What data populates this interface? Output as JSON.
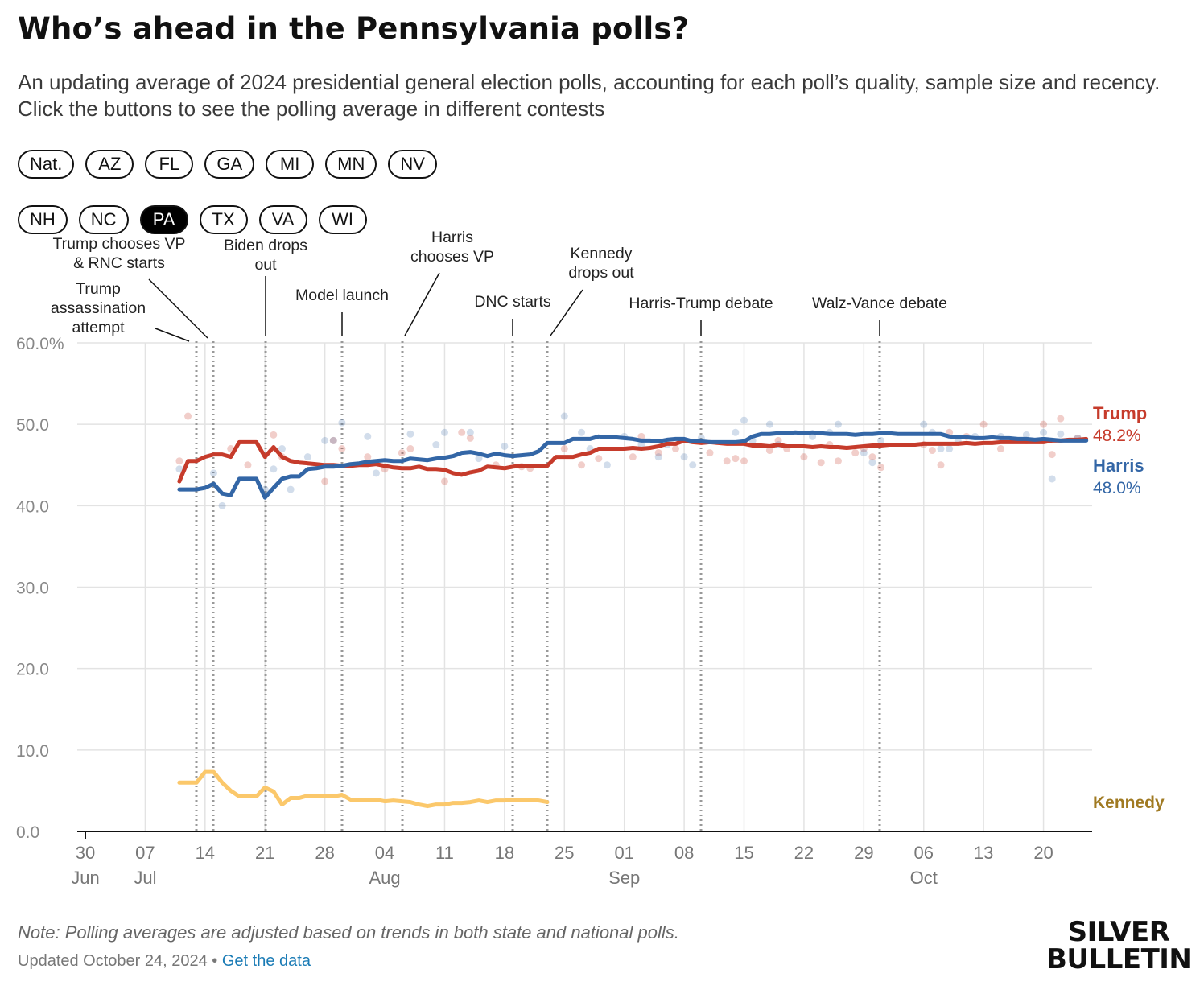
{
  "header": {
    "title": "Who’s ahead in the Pennsylvania polls?",
    "subtitle": "An updating average of 2024 presidential general election polls, accounting for each poll’s quality, sample size and recency. Click the buttons to see the polling average in different contests"
  },
  "buttons": {
    "row1": [
      "Nat.",
      "AZ",
      "FL",
      "GA",
      "MI",
      "MN",
      "NV"
    ],
    "row2": [
      "NH",
      "NC",
      "PA",
      "TX",
      "VA",
      "WI"
    ],
    "active": "PA"
  },
  "colors": {
    "trump": "#c63b2b",
    "harris": "#3366a6",
    "kennedy": "#fbc86b",
    "kennedy_label": "#a07a22",
    "grid": "#e3e3e3",
    "axis": "#111111",
    "tick": "#888888"
  },
  "chart_data": {
    "type": "line",
    "title": "Who’s ahead in the Pennsylvania polls?",
    "ylabel": "",
    "xlabel": "",
    "ylim": [
      0,
      60
    ],
    "y_ticks": [
      "60.0%",
      "50.0",
      "40.0",
      "30.0",
      "20.0",
      "10.0",
      "0.0"
    ],
    "y_tick_values": [
      60,
      50,
      40,
      30,
      20,
      10,
      0
    ],
    "x_domain_days": [
      0,
      117
    ],
    "x_ticks": [
      {
        "day": 0,
        "label": "30",
        "month": "Jun"
      },
      {
        "day": 7,
        "label": "07",
        "month": "Jul"
      },
      {
        "day": 14,
        "label": "14",
        "month": ""
      },
      {
        "day": 21,
        "label": "21",
        "month": ""
      },
      {
        "day": 28,
        "label": "28",
        "month": ""
      },
      {
        "day": 35,
        "label": "04",
        "month": "Aug"
      },
      {
        "day": 42,
        "label": "11",
        "month": ""
      },
      {
        "day": 49,
        "label": "18",
        "month": ""
      },
      {
        "day": 56,
        "label": "25",
        "month": ""
      },
      {
        "day": 63,
        "label": "01",
        "month": "Sep"
      },
      {
        "day": 70,
        "label": "08",
        "month": ""
      },
      {
        "day": 77,
        "label": "15",
        "month": ""
      },
      {
        "day": 84,
        "label": "22",
        "month": ""
      },
      {
        "day": 91,
        "label": "29",
        "month": ""
      },
      {
        "day": 98,
        "label": "06",
        "month": "Oct"
      },
      {
        "day": 105,
        "label": "13",
        "month": ""
      },
      {
        "day": 112,
        "label": "20",
        "month": ""
      }
    ],
    "events": [
      {
        "day": 13,
        "label": "Trump assassination attempt"
      },
      {
        "day": 15,
        "label": "Trump chooses VP & RNC starts"
      },
      {
        "day": 21,
        "label": "Biden drops out"
      },
      {
        "day": 30,
        "label": "Model launch"
      },
      {
        "day": 37,
        "label": "Harris chooses VP"
      },
      {
        "day": 50,
        "label": "DNC starts"
      },
      {
        "day": 54,
        "label": "Kennedy drops out"
      },
      {
        "day": 72,
        "label": "Harris-Trump debate"
      },
      {
        "day": 93,
        "label": "Walz-Vance debate"
      }
    ],
    "series": [
      {
        "name": "Trump",
        "end_label": "48.2%",
        "x": [
          11,
          12,
          13,
          14,
          15,
          16,
          17,
          18,
          19,
          20,
          21,
          22,
          23,
          24,
          25,
          26,
          27,
          28,
          29,
          30,
          31,
          32,
          33,
          34,
          35,
          36,
          37,
          38,
          39,
          40,
          41,
          42,
          43,
          44,
          45,
          46,
          47,
          48,
          49,
          50,
          51,
          52,
          53,
          54,
          55,
          56,
          57,
          58,
          59,
          60,
          61,
          62,
          63,
          64,
          65,
          66,
          67,
          68,
          69,
          70,
          71,
          72,
          73,
          74,
          75,
          76,
          77,
          78,
          79,
          80,
          81,
          82,
          83,
          84,
          85,
          86,
          87,
          88,
          89,
          90,
          91,
          92,
          93,
          94,
          95,
          96,
          97,
          98,
          99,
          100,
          101,
          102,
          103,
          104,
          105,
          106,
          107,
          108,
          109,
          110,
          111,
          112,
          113,
          114,
          115,
          116,
          117
        ],
        "values": [
          43.0,
          45.5,
          45.5,
          46.0,
          46.3,
          46.3,
          46.0,
          47.8,
          47.8,
          47.8,
          46.0,
          47.2,
          46.0,
          45.5,
          45.3,
          45.2,
          45.1,
          45.0,
          45.0,
          44.9,
          44.9,
          45.0,
          45.0,
          45.1,
          44.9,
          44.7,
          44.6,
          44.6,
          44.8,
          44.5,
          44.5,
          44.4,
          44.0,
          43.8,
          44.1,
          44.3,
          44.8,
          44.7,
          44.6,
          44.8,
          44.9,
          44.9,
          44.9,
          44.9,
          46.0,
          46.0,
          46.0,
          46.3,
          46.5,
          47.0,
          47.0,
          47.0,
          47.0,
          47.1,
          47.0,
          47.1,
          47.3,
          47.6,
          47.6,
          48.0,
          47.8,
          47.7,
          47.8,
          47.7,
          47.6,
          47.6,
          47.6,
          47.4,
          47.4,
          47.3,
          47.5,
          47.3,
          47.3,
          47.3,
          47.2,
          47.3,
          47.2,
          47.2,
          47.1,
          47.2,
          47.3,
          47.4,
          47.4,
          47.5,
          47.5,
          47.5,
          47.5,
          47.6,
          47.6,
          47.6,
          47.6,
          47.6,
          47.7,
          47.6,
          47.7,
          47.7,
          47.8,
          47.8,
          47.8,
          47.8,
          47.8,
          47.8,
          48.0,
          48.0,
          48.1,
          48.1,
          48.2
        ]
      },
      {
        "name": "Harris",
        "end_label": "48.0%",
        "x": [
          11,
          12,
          13,
          14,
          15,
          16,
          17,
          18,
          19,
          20,
          21,
          22,
          23,
          24,
          25,
          26,
          27,
          28,
          29,
          30,
          31,
          32,
          33,
          34,
          35,
          36,
          37,
          38,
          39,
          40,
          41,
          42,
          43,
          44,
          45,
          46,
          47,
          48,
          49,
          50,
          51,
          52,
          53,
          54,
          55,
          56,
          57,
          58,
          59,
          60,
          61,
          62,
          63,
          64,
          65,
          66,
          67,
          68,
          69,
          70,
          71,
          72,
          73,
          74,
          75,
          76,
          77,
          78,
          79,
          80,
          81,
          82,
          83,
          84,
          85,
          86,
          87,
          88,
          89,
          90,
          91,
          92,
          93,
          94,
          95,
          96,
          97,
          98,
          99,
          100,
          101,
          102,
          103,
          104,
          105,
          106,
          107,
          108,
          109,
          110,
          111,
          112,
          113,
          114,
          115,
          116,
          117
        ],
        "values": [
          42.0,
          42.0,
          42.0,
          42.2,
          42.7,
          41.5,
          41.3,
          43.3,
          43.3,
          43.3,
          41.0,
          42.2,
          43.3,
          43.6,
          43.6,
          44.5,
          44.6,
          44.8,
          44.8,
          44.9,
          45.1,
          45.2,
          45.4,
          45.5,
          45.6,
          45.5,
          45.5,
          45.8,
          45.7,
          45.6,
          45.8,
          45.9,
          46.1,
          46.5,
          46.6,
          46.4,
          46.1,
          46.4,
          46.2,
          46.1,
          46.2,
          46.3,
          46.7,
          47.7,
          47.7,
          47.7,
          48.2,
          48.2,
          48.2,
          48.5,
          48.4,
          48.4,
          48.3,
          48.2,
          48.0,
          48.0,
          47.9,
          48.1,
          48.2,
          48.2,
          47.9,
          47.9,
          47.8,
          47.8,
          47.8,
          47.8,
          47.9,
          48.5,
          48.8,
          48.8,
          48.9,
          48.9,
          49.0,
          48.9,
          49.0,
          48.9,
          48.8,
          48.8,
          48.8,
          48.7,
          48.8,
          48.8,
          48.9,
          48.9,
          48.8,
          48.8,
          48.8,
          48.8,
          48.8,
          48.8,
          48.5,
          48.4,
          48.4,
          48.3,
          48.3,
          48.4,
          48.3,
          48.3,
          48.2,
          48.2,
          48.1,
          48.2,
          48.1,
          48.0,
          48.0,
          48.0,
          48.0
        ]
      },
      {
        "name": "Kennedy",
        "end_label": "",
        "x": [
          11,
          12,
          13,
          14,
          15,
          16,
          17,
          18,
          19,
          20,
          21,
          22,
          23,
          24,
          25,
          26,
          27,
          28,
          29,
          30,
          31,
          32,
          33,
          34,
          35,
          36,
          37,
          38,
          39,
          40,
          41,
          42,
          43,
          44,
          45,
          46,
          47,
          48,
          49,
          50,
          51,
          52,
          53,
          54
        ],
        "values": [
          6.0,
          6.0,
          6.0,
          7.3,
          7.3,
          6.0,
          5.0,
          4.3,
          4.3,
          4.3,
          5.4,
          4.9,
          3.3,
          4.1,
          4.1,
          4.4,
          4.4,
          4.3,
          4.3,
          4.5,
          3.9,
          3.9,
          3.9,
          3.9,
          3.7,
          3.8,
          3.7,
          3.6,
          3.3,
          3.1,
          3.3,
          3.3,
          3.5,
          3.5,
          3.6,
          3.8,
          3.6,
          3.8,
          3.8,
          3.9,
          3.9,
          3.9,
          3.8,
          3.6
        ]
      }
    ],
    "polls": {
      "trump": [
        [
          11,
          45.5
        ],
        [
          12,
          51
        ],
        [
          17,
          47
        ],
        [
          19,
          45
        ],
        [
          22,
          48.7
        ],
        [
          23,
          46
        ],
        [
          28,
          43
        ],
        [
          29,
          48
        ],
        [
          30,
          47
        ],
        [
          33,
          46
        ],
        [
          35,
          44.5
        ],
        [
          37,
          46.5
        ],
        [
          38,
          47
        ],
        [
          42,
          43
        ],
        [
          44,
          49
        ],
        [
          45,
          48.3
        ],
        [
          48,
          45
        ],
        [
          51,
          44.8
        ],
        [
          52,
          44.6
        ],
        [
          56,
          47
        ],
        [
          58,
          45
        ],
        [
          60,
          45.8
        ],
        [
          64,
          46
        ],
        [
          65,
          48.5
        ],
        [
          67,
          46.5
        ],
        [
          69,
          47
        ],
        [
          73,
          46.5
        ],
        [
          75,
          45.5
        ],
        [
          76,
          45.8
        ],
        [
          77,
          45.5
        ],
        [
          80,
          46.8
        ],
        [
          81,
          48
        ],
        [
          82,
          47
        ],
        [
          84,
          46
        ],
        [
          86,
          45.3
        ],
        [
          87,
          47.5
        ],
        [
          88,
          45.5
        ],
        [
          90,
          46.5
        ],
        [
          91,
          47
        ],
        [
          92,
          46
        ],
        [
          93,
          44.7
        ],
        [
          98,
          47.5
        ],
        [
          99,
          46.8
        ],
        [
          100,
          45
        ],
        [
          101,
          49
        ],
        [
          103,
          48.5
        ],
        [
          105,
          50
        ],
        [
          107,
          47
        ],
        [
          110,
          48
        ],
        [
          112,
          50
        ],
        [
          113,
          46.3
        ],
        [
          114,
          50.7
        ],
        [
          116,
          48.3
        ]
      ],
      "harris": [
        [
          11,
          44.5
        ],
        [
          15,
          44
        ],
        [
          16,
          40
        ],
        [
          21,
          42
        ],
        [
          22,
          44.5
        ],
        [
          23,
          47
        ],
        [
          24,
          42
        ],
        [
          26,
          46
        ],
        [
          28,
          48
        ],
        [
          29,
          48
        ],
        [
          30,
          50.2
        ],
        [
          33,
          48.5
        ],
        [
          34,
          44
        ],
        [
          38,
          48.8
        ],
        [
          41,
          47.5
        ],
        [
          42,
          49
        ],
        [
          45,
          49
        ],
        [
          46,
          45.8
        ],
        [
          49,
          47.3
        ],
        [
          56,
          51
        ],
        [
          58,
          49
        ],
        [
          59,
          47
        ],
        [
          61,
          45
        ],
        [
          63,
          48.5
        ],
        [
          65,
          47.5
        ],
        [
          67,
          46
        ],
        [
          68,
          47.5
        ],
        [
          70,
          46
        ],
        [
          71,
          45
        ],
        [
          72,
          48.3
        ],
        [
          76,
          49
        ],
        [
          77,
          50.5
        ],
        [
          78,
          48
        ],
        [
          80,
          50
        ],
        [
          81,
          47.5
        ],
        [
          85,
          48.5
        ],
        [
          87,
          49
        ],
        [
          88,
          50
        ],
        [
          91,
          46.5
        ],
        [
          92,
          45.3
        ],
        [
          93,
          48
        ],
        [
          98,
          50
        ],
        [
          99,
          49
        ],
        [
          100,
          47
        ],
        [
          101,
          47
        ],
        [
          102,
          48
        ],
        [
          104,
          48.5
        ],
        [
          107,
          48.5
        ],
        [
          110,
          48.7
        ],
        [
          112,
          49
        ],
        [
          113,
          43.3
        ],
        [
          114,
          48.8
        ],
        [
          116,
          48.3
        ]
      ]
    }
  },
  "series_labels": {
    "trump": {
      "name": "Trump",
      "value": "48.2%"
    },
    "harris": {
      "name": "Harris",
      "value": "48.0%"
    },
    "kennedy": {
      "name": "Kennedy"
    }
  },
  "footer": {
    "note": "Note: Polling averages are adjusted based on trends in both state and national polls.",
    "updated": "Updated October 24, 2024",
    "separator": " • ",
    "link": "Get the data",
    "logo_line1": "SILVER",
    "logo_line2": "BULLETIN"
  }
}
